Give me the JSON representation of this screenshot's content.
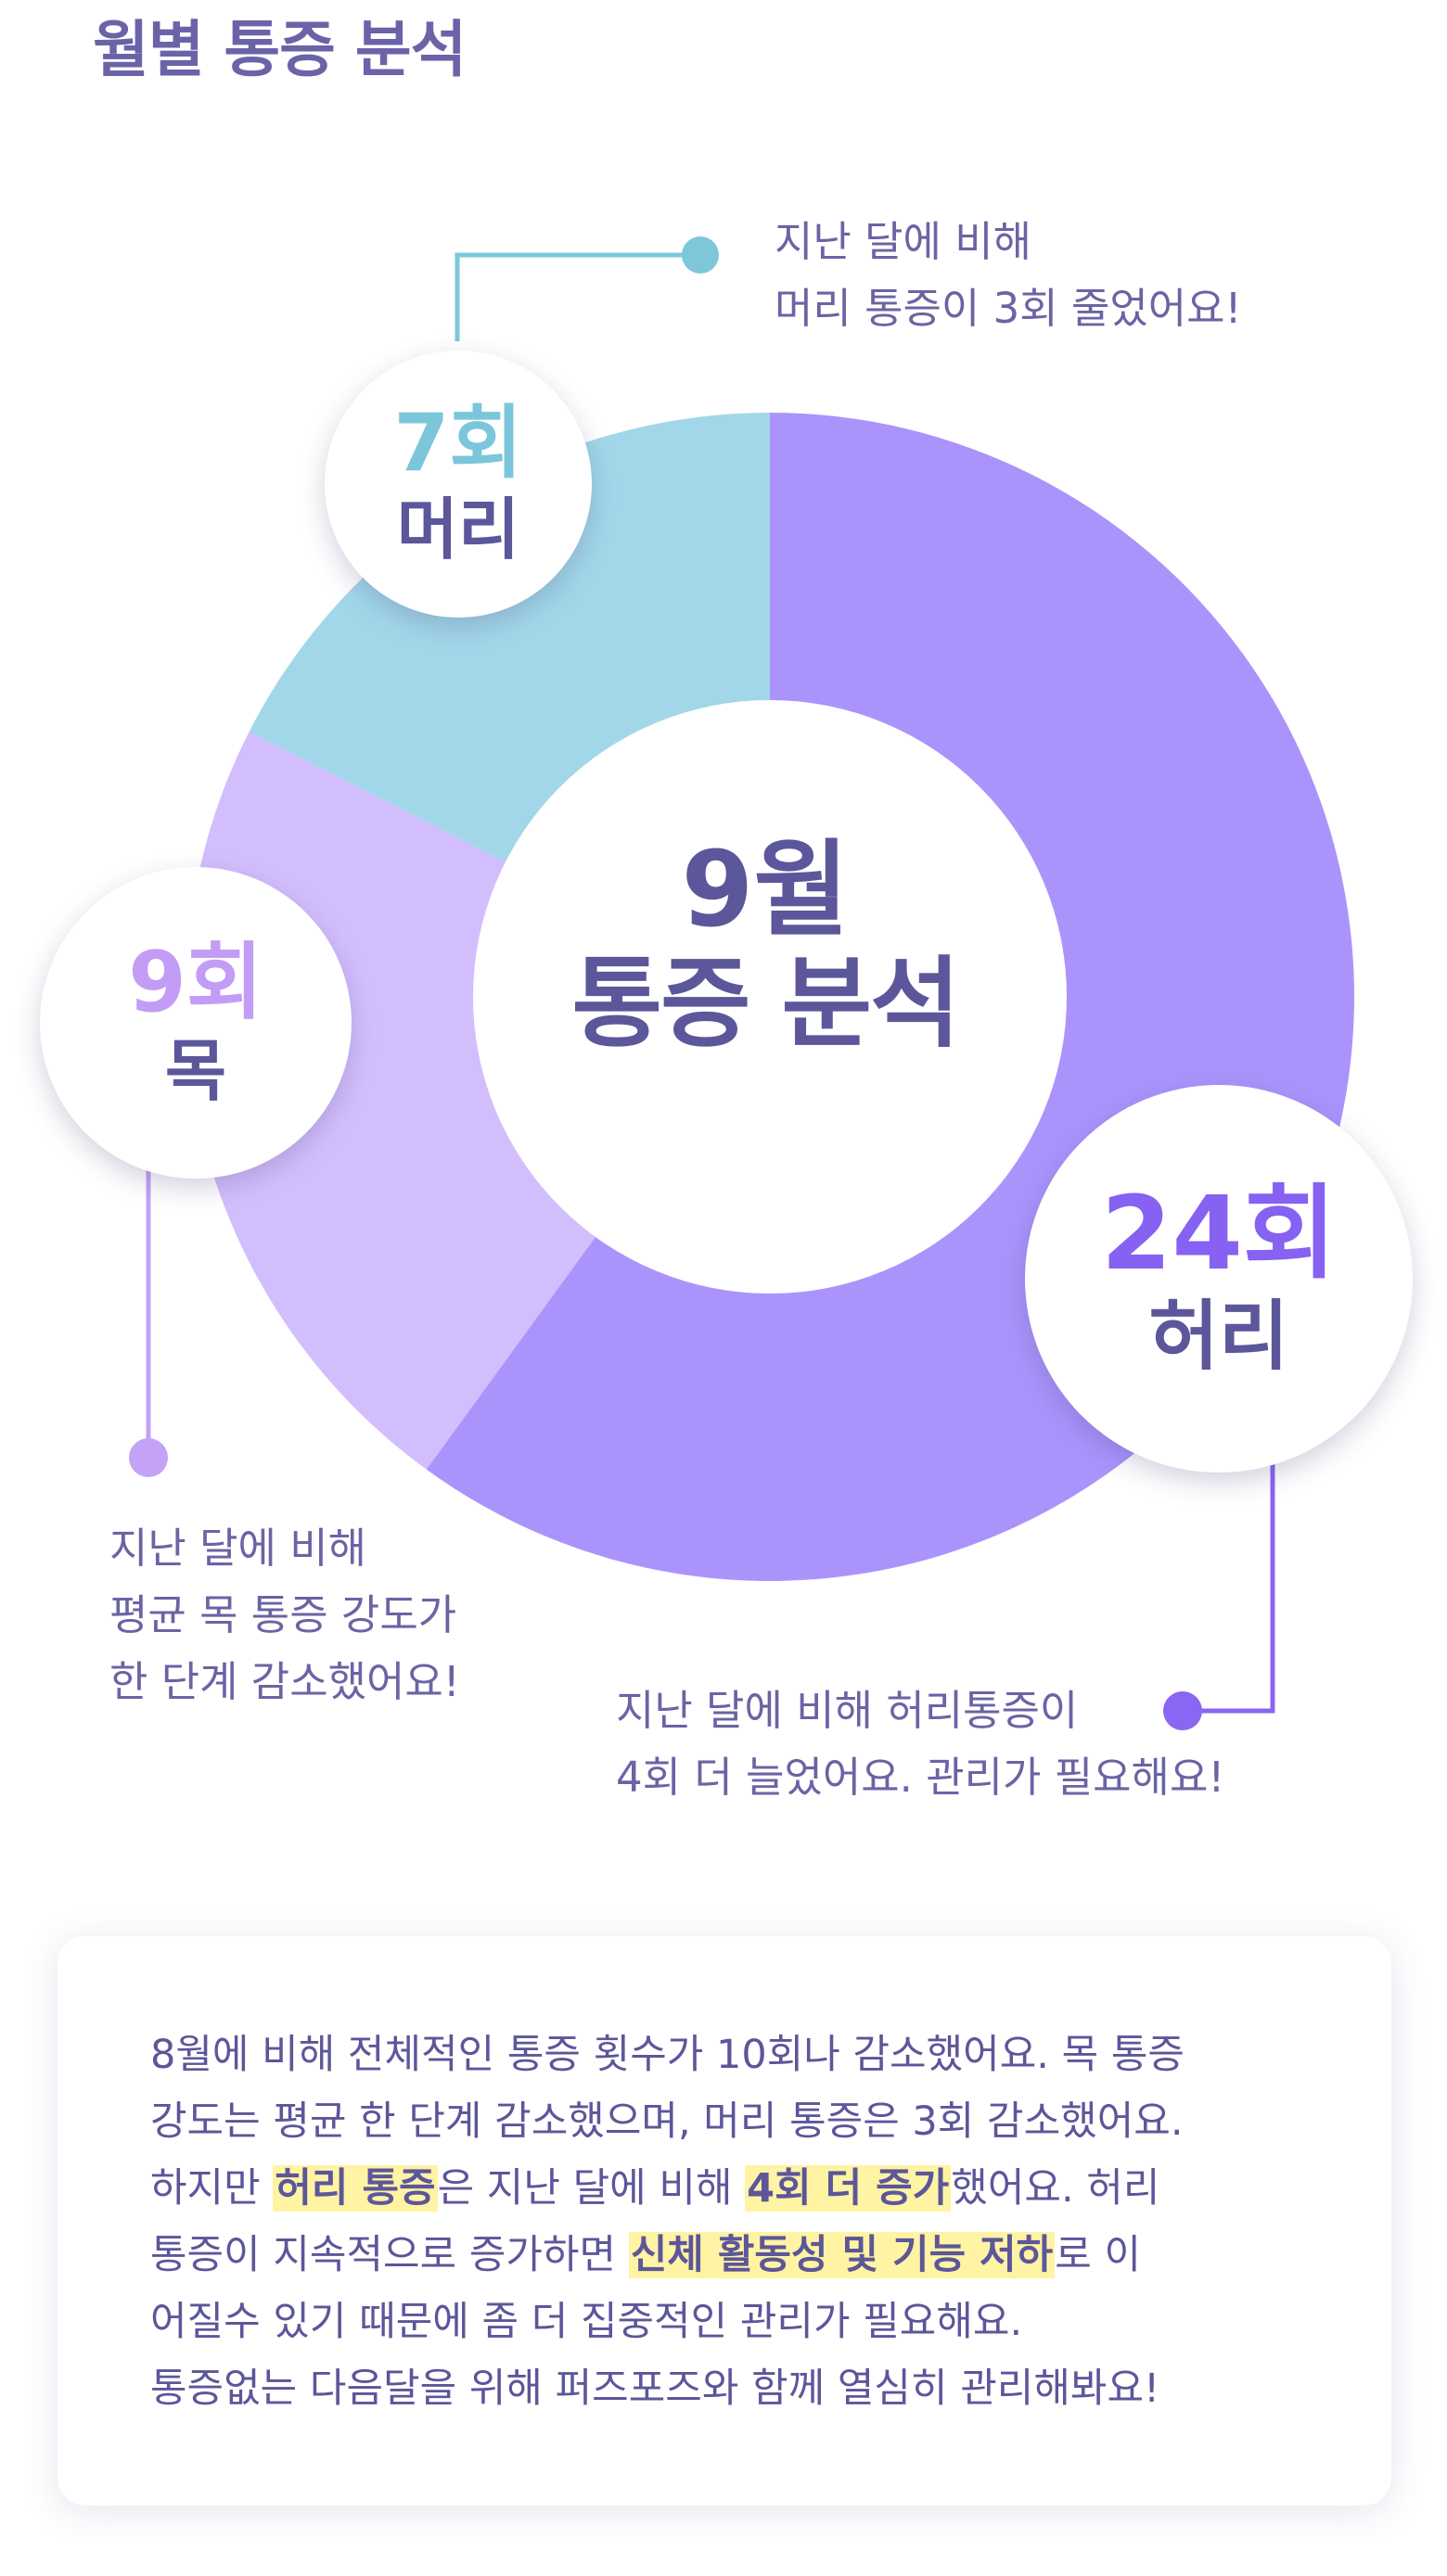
{
  "page": {
    "title": "월별 통증 분석"
  },
  "center": {
    "month": "9월",
    "subtitle": "통증 분석"
  },
  "chart_data": {
    "type": "pie",
    "categories": [
      "허리",
      "목",
      "머리"
    ],
    "values": [
      24,
      9,
      7
    ],
    "value_labels": [
      "24회",
      "9회",
      "7회"
    ],
    "colors": [
      "#aa94fc",
      "#d3befd",
      "#a2d7e9"
    ]
  },
  "bubbles": {
    "head": {
      "count": "7회",
      "part": "머리",
      "color": "#7bc6da"
    },
    "neck": {
      "count": "9회",
      "part": "목",
      "color": "#c39cf6"
    },
    "back": {
      "count": "24회",
      "part": "허리",
      "color": "#8661f2"
    }
  },
  "notes": {
    "head": {
      "line1": "지난 달에 비해",
      "line2": "머리 통증이 3회 줄었어요!"
    },
    "neck": {
      "line1": "지난 달에 비해",
      "line2": "평균 목 통증 강도가",
      "line3": "한 단계 감소했어요!"
    },
    "back": {
      "line1": "지난 달에 비해 허리통증이",
      "line2": "4회 더 늘었어요. 관리가 필요해요!"
    }
  },
  "summary": {
    "line1": "8월에 비해 전체적인 통증 횟수가 10회나 감소했어요. 목 통증",
    "line2": "강도는 평균 한 단계 감소했으며, 머리 통증은 3회 감소했어요.",
    "line3_a": "하지만 ",
    "line3_hl1": "허리 통증",
    "line3_b": "은 지난 달에 비해 ",
    "line3_hl2": "4회 더 증가",
    "line3_c": "했어요. 허리",
    "line4_a": "통증이 지속적으로 증가하면 ",
    "line4_hl": "신체 활동성 및 기능 저하",
    "line4_b": "로 이",
    "line5": "어질수 있기 때문에 좀 더 집중적인 관리가 필요해요.",
    "line6": "통증없는 다음달을 위해 퍼즈포즈와 함께 열심히 관리해봐요!"
  }
}
